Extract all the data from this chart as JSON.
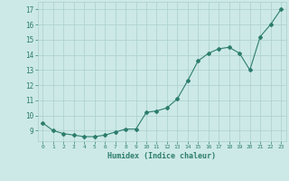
{
  "x": [
    0,
    1,
    2,
    3,
    4,
    5,
    6,
    7,
    8,
    9,
    10,
    11,
    12,
    13,
    14,
    15,
    16,
    17,
    18,
    19,
    20,
    21,
    22,
    23
  ],
  "y": [
    9.5,
    9.0,
    8.8,
    8.7,
    8.6,
    8.6,
    8.7,
    8.9,
    9.1,
    9.1,
    10.2,
    10.3,
    10.5,
    11.1,
    12.3,
    13.6,
    14.1,
    14.4,
    14.5,
    14.1,
    13.0,
    15.2,
    16.0,
    17.0
  ],
  "xlabel": "Humidex (Indice chaleur)",
  "xlim": [
    -0.5,
    23.5
  ],
  "ylim": [
    8.3,
    17.5
  ],
  "yticks": [
    9,
    10,
    11,
    12,
    13,
    14,
    15,
    16,
    17
  ],
  "xticks": [
    0,
    1,
    2,
    3,
    4,
    5,
    6,
    7,
    8,
    9,
    10,
    11,
    12,
    13,
    14,
    15,
    16,
    17,
    18,
    19,
    20,
    21,
    22,
    23
  ],
  "line_color": "#2d7d6e",
  "marker": "D",
  "marker_size": 2.0,
  "bg_color": "#cce9e7",
  "grid_color": "#aacfcc",
  "tick_color": "#2d7d6e",
  "label_color": "#2d7d6e",
  "line_width": 0.8
}
